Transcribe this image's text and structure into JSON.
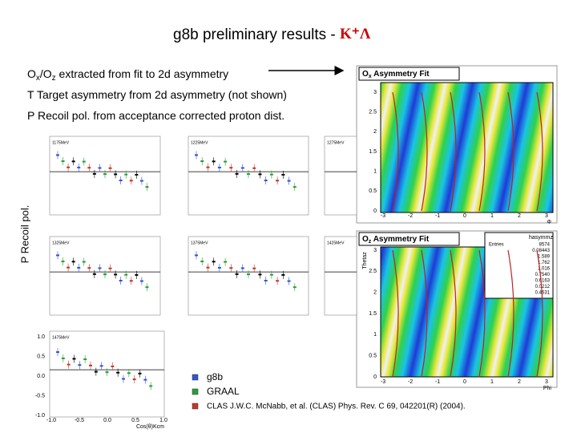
{
  "header": {
    "title": "g8b preliminary results - ",
    "reaction": "K⁺Λ"
  },
  "bullets": [
    {
      "sym": "O",
      "sub1": "x",
      "mid": "/O",
      "sub2": "z",
      "text": " extracted from fit to 2d asymmetry"
    },
    {
      "sym": "T",
      "text": " Target asymmetry from 2d asymmetry (not shown)"
    },
    {
      "sym": "P",
      "text": " Recoil pol. from acceptance corrected proton dist."
    }
  ],
  "y_axis_label": "P Recoil pol.",
  "panels": [
    "1175MeV",
    "1225MeV",
    "1275MeV",
    "1325MeV",
    "1375MeV",
    "1425MeV",
    "1475MeV"
  ],
  "bottom_panel_axes": {
    "yticks": [
      "1.0",
      "0.5",
      "0.0",
      "-0.5",
      "-1.0"
    ],
    "xticks": [
      "-1.0",
      "-0.5",
      "0.0",
      "0.5",
      "1.0"
    ],
    "xlabel": "Cos(θ)Kcm"
  },
  "ox_plot": {
    "sym": "O",
    "sub": "x",
    "text": " Asymmetry Fit",
    "yticks": [
      "3",
      "2.5",
      "2",
      "1.5",
      "1",
      "0.5",
      "0"
    ],
    "xticks": [
      "-3",
      "-2",
      "-1",
      "0",
      "1",
      "2",
      "3"
    ],
    "xlabel": "Φ"
  },
  "oz_plot": {
    "sym": "O",
    "sub": "z",
    "text": " Asymmetry Fit",
    "ylabel": "Thetaz",
    "yticks": [
      "3",
      "2.5",
      "2",
      "1.5",
      "1",
      "0.5",
      "0"
    ],
    "xticks": [
      "-3",
      "-2",
      "-1",
      "0",
      "1",
      "2",
      "3"
    ],
    "xlabel": "Phi",
    "stats": {
      "name": "hasymmz",
      "entries_label": "Entries",
      "values": [
        "8574",
        "0.08443",
        "1.589",
        "1.762",
        "1.016",
        "0.7540",
        "0.6163",
        "0.0212",
        "0.4631"
      ]
    }
  },
  "legend": [
    {
      "label": "g8b",
      "color": "#3355cc"
    },
    {
      "label": "GRAAL",
      "color": "#2a9d3a"
    },
    {
      "label": "CLAS J.W.C. McNabb, et al. (CLAS) Phys. Rev. C 69, 042201(R) (2004).",
      "color": "#c0392b"
    }
  ]
}
